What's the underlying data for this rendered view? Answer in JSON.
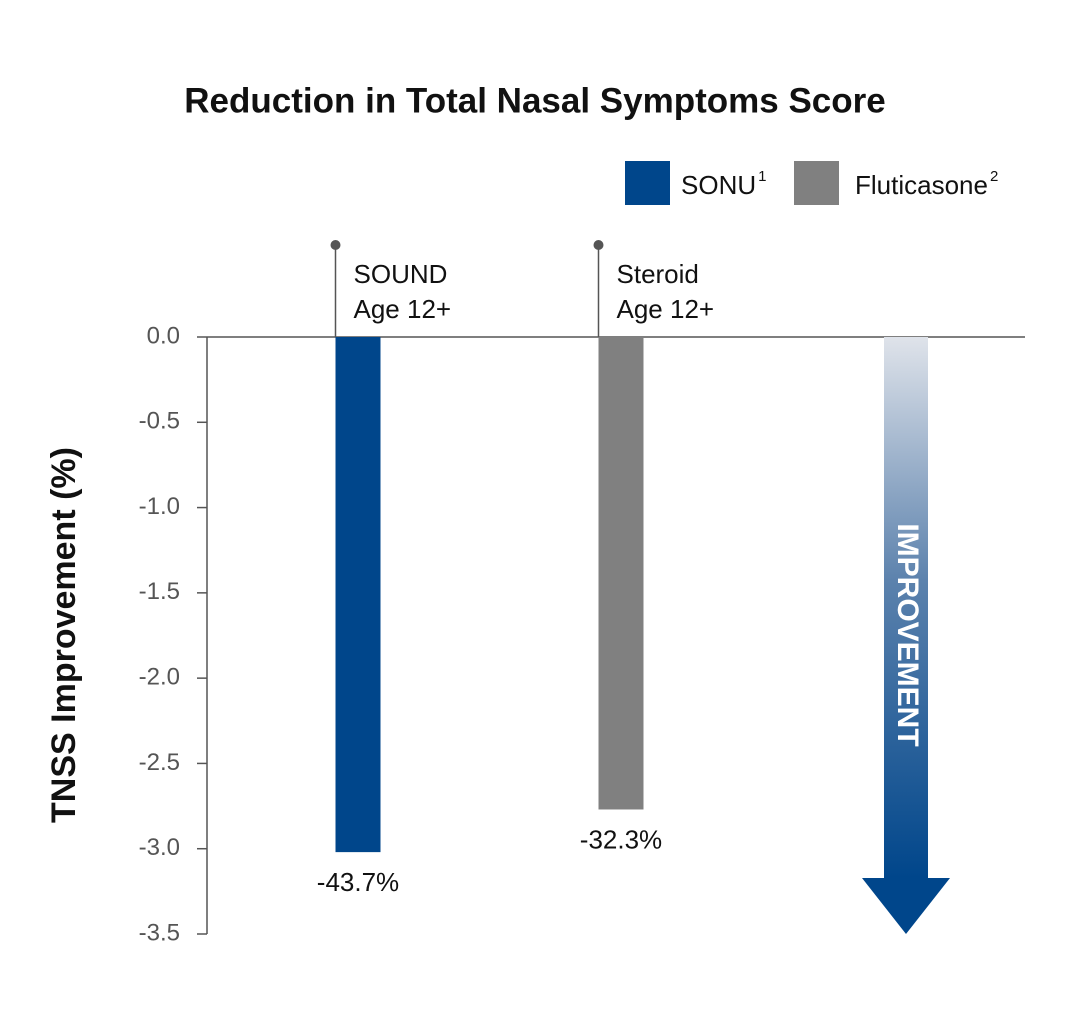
{
  "chart_data": {
    "type": "bar",
    "title": "Reduction in Total Nasal Symptoms Score",
    "y_label": "TNSS Improvement (%)",
    "categories": [
      [
        "SOUND",
        "Age 12+"
      ],
      [
        "Steroid",
        "Age 12+"
      ]
    ],
    "values": [
      -3.02,
      -2.77
    ],
    "colors": [
      "#00468b",
      "#808080"
    ],
    "bar_notes": [
      "-43.7%",
      "-32.3%"
    ],
    "legend": [
      "SONU",
      "Fluticasone"
    ],
    "legend_footnotes": [
      "1",
      "2"
    ],
    "arrow_label": "IMPROVEMENT",
    "ylim": [
      0,
      -3.5
    ],
    "yticks": [
      {
        "value": 0,
        "label": "0.0"
      },
      -0.5,
      {
        "value": -1,
        "label": "-1.0"
      },
      -1.5,
      {
        "value": -2,
        "label": "-2.0"
      },
      -2.5,
      {
        "value": -3,
        "label": "-3.0"
      },
      -3.5
    ]
  }
}
